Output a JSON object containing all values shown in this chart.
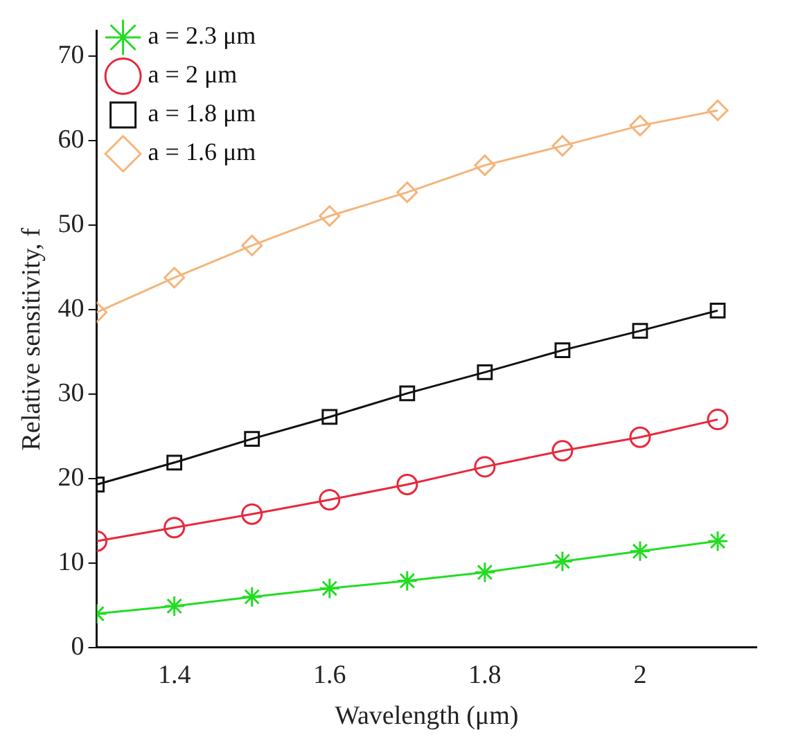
{
  "chart_data": {
    "type": "line",
    "xlabel": "Wavelength (μm)",
    "ylabel": "Relative sensitivity, f",
    "x": [
      1.3,
      1.4,
      1.5,
      1.6,
      1.7,
      1.8,
      1.9,
      2.0,
      2.1
    ],
    "series": [
      {
        "name": "a = 2.3 μm",
        "color": "#22dd22",
        "marker": "cross",
        "values": [
          4.0,
          4.9,
          6.0,
          7.0,
          7.9,
          8.9,
          10.2,
          11.4,
          12.6
        ]
      },
      {
        "name": "a = 2 μm",
        "color": "#e8283c",
        "marker": "circle",
        "values": [
          12.6,
          14.2,
          15.8,
          17.5,
          19.3,
          21.4,
          23.3,
          24.9,
          27.0
        ]
      },
      {
        "name": "a = 1.8 μm",
        "color": "#111111",
        "marker": "square",
        "values": [
          19.3,
          21.9,
          24.7,
          27.3,
          30.1,
          32.6,
          35.2,
          37.5,
          39.9
        ]
      },
      {
        "name": "a = 1.6 μm",
        "color": "#f5b47a",
        "marker": "diamond",
        "values": [
          39.7,
          43.8,
          47.6,
          51.1,
          53.9,
          57.1,
          59.4,
          61.8,
          63.6
        ]
      }
    ],
    "xlim": [
      1.3,
      2.15
    ],
    "xticks": [
      1.4,
      1.6,
      1.8,
      2
    ],
    "ylim": [
      0,
      73
    ],
    "yticks": [
      0,
      10,
      20,
      30,
      40,
      50,
      60,
      70
    ],
    "legend": "top left",
    "grid": false,
    "line_style": "solid"
  }
}
